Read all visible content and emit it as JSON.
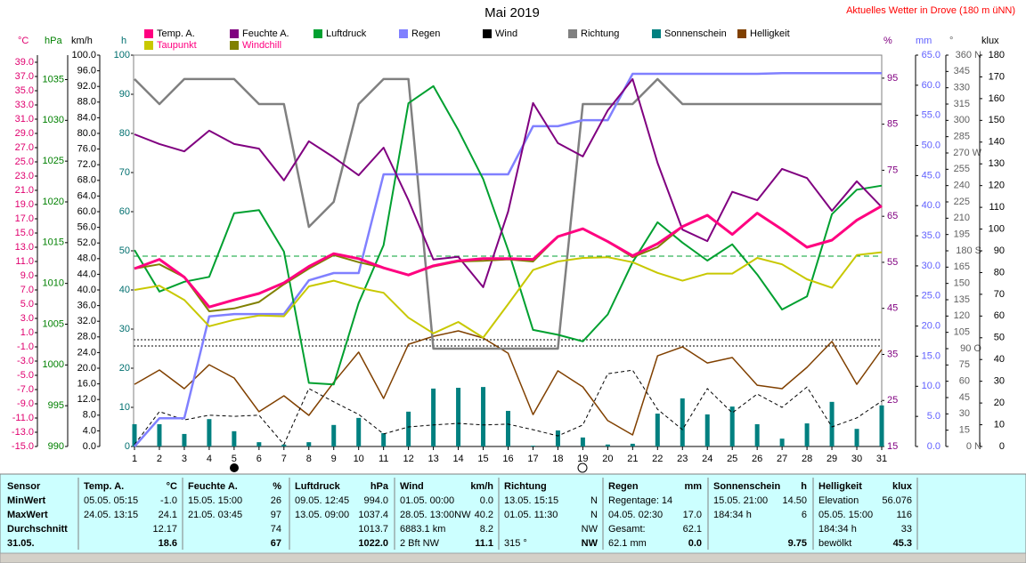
{
  "chart_data": {
    "type": "line",
    "title": "Mai 2019",
    "annotation": "Aktuelles Wetter in Drove (180 m üNN)",
    "categories": [
      "1",
      "2",
      "3",
      "4",
      "5",
      "6",
      "7",
      "8",
      "9",
      "10",
      "11",
      "12",
      "13",
      "14",
      "15",
      "16",
      "17",
      "18",
      "19",
      "20",
      "21",
      "22",
      "23",
      "24",
      "25",
      "26",
      "27",
      "28",
      "29",
      "30",
      "31"
    ],
    "axes": [
      {
        "label": "°C",
        "side": "left",
        "color": "#e0006f",
        "ylim": [
          -15,
          40
        ],
        "yticks": [
          {
            "value": -15,
            "label": "-15.0"
          },
          {
            "value": -13,
            "label": "-13.0"
          },
          {
            "value": -11,
            "label": "-11.0"
          },
          {
            "value": -9,
            "label": "-9.0"
          },
          {
            "value": -7,
            "label": "-7.0"
          },
          {
            "value": -5,
            "label": "-5.0"
          },
          {
            "value": -3,
            "label": "-3.0"
          },
          {
            "value": -1,
            "label": "-1.0"
          },
          {
            "value": 1,
            "label": "1.0"
          },
          {
            "value": 3,
            "label": "3.0"
          },
          {
            "value": 5,
            "label": "5.0"
          },
          {
            "value": 7,
            "label": "7.0"
          },
          {
            "value": 9,
            "label": "9.0"
          },
          {
            "value": 11,
            "label": "11.0"
          },
          {
            "value": 13,
            "label": "13.0"
          },
          {
            "value": 15,
            "label": "15.0"
          },
          {
            "value": 17,
            "label": "17.0"
          },
          {
            "value": 19,
            "label": "19.0"
          },
          {
            "value": 21,
            "label": "21.0"
          },
          {
            "value": 23,
            "label": "23.0"
          },
          {
            "value": 25,
            "label": "25.0"
          },
          {
            "value": 27,
            "label": "27.0"
          },
          {
            "value": 29,
            "label": "29.0"
          },
          {
            "value": 31,
            "label": "31.0"
          },
          {
            "value": 33,
            "label": "33.0"
          },
          {
            "value": 35,
            "label": "35.0"
          },
          {
            "value": 37,
            "label": "37.0"
          },
          {
            "value": 39,
            "label": "39.0"
          }
        ]
      },
      {
        "label": "hPa",
        "side": "left",
        "color": "#008000",
        "ylim": [
          990,
          1038
        ],
        "yticks": [
          990,
          995,
          1000,
          1005,
          1010,
          1015,
          1020,
          1025,
          1030,
          1035
        ]
      },
      {
        "label": "km/h",
        "side": "left",
        "color": "#000000",
        "ylim": [
          0,
          100
        ],
        "yticks": [
          {
            "value": 0,
            "label": "0.0"
          },
          {
            "value": 4,
            "label": "4.0"
          },
          {
            "value": 8,
            "label": "8.0"
          },
          {
            "value": 12,
            "label": "12.0"
          },
          {
            "value": 16,
            "label": "16.0"
          },
          {
            "value": 20,
            "label": "20.0"
          },
          {
            "value": 24,
            "label": "24.0"
          },
          {
            "value": 28,
            "label": "28.0"
          },
          {
            "value": 32,
            "label": "32.0"
          },
          {
            "value": 36,
            "label": "36.0"
          },
          {
            "value": 40,
            "label": "40.0"
          },
          {
            "value": 44,
            "label": "44.0"
          },
          {
            "value": 48,
            "label": "48.0"
          },
          {
            "value": 52,
            "label": "52.0"
          },
          {
            "value": 56,
            "label": "56.0"
          },
          {
            "value": 60,
            "label": "60.0"
          },
          {
            "value": 64,
            "label": "64.0"
          },
          {
            "value": 68,
            "label": "68.0"
          },
          {
            "value": 72,
            "label": "72.0"
          },
          {
            "value": 76,
            "label": "76.0"
          },
          {
            "value": 80,
            "label": "80.0"
          },
          {
            "value": 84,
            "label": "84.0"
          },
          {
            "value": 88,
            "label": "88.0"
          },
          {
            "value": 92,
            "label": "92.0"
          },
          {
            "value": 96,
            "label": "96.0"
          },
          {
            "value": 100,
            "label": "100.0"
          }
        ]
      },
      {
        "label": "h",
        "side": "left",
        "color": "#006f6f",
        "ylim": [
          0,
          100
        ],
        "yticks": [
          0,
          10,
          20,
          30,
          40,
          50,
          60,
          70,
          80,
          90,
          100
        ]
      },
      {
        "label": "%",
        "side": "right",
        "color": "#800080",
        "ylim": [
          15,
          100
        ],
        "yticks": [
          15,
          25,
          35,
          45,
          55,
          65,
          75,
          85,
          95
        ]
      },
      {
        "label": "mm",
        "side": "right",
        "color": "#6060ff",
        "ylim": [
          0,
          65
        ],
        "yticks": [
          {
            "value": 0,
            "label": "0.0"
          },
          {
            "value": 5,
            "label": "5.0"
          },
          {
            "value": 10,
            "label": "10.0"
          },
          {
            "value": 15,
            "label": "15.0"
          },
          {
            "value": 20,
            "label": "20.0"
          },
          {
            "value": 25,
            "label": "25.0"
          },
          {
            "value": 30,
            "label": "30.0"
          },
          {
            "value": 35,
            "label": "35.0"
          },
          {
            "value": 40,
            "label": "40.0"
          },
          {
            "value": 45,
            "label": "45.0"
          },
          {
            "value": 50,
            "label": "50.0"
          },
          {
            "value": 55,
            "label": "55.0"
          },
          {
            "value": 60,
            "label": "60.0"
          },
          {
            "value": 65,
            "label": "65.0"
          }
        ]
      },
      {
        "label": "°",
        "side": "right",
        "color": "#606060",
        "ylim": [
          0,
          360
        ],
        "yticks": [
          {
            "value": 0,
            "label": "0 N"
          },
          15,
          30,
          45,
          60,
          75,
          {
            "value": 90,
            "label": "90 O"
          },
          105,
          120,
          135,
          150,
          165,
          {
            "value": 180,
            "label": "180 S"
          },
          195,
          210,
          225,
          240,
          255,
          {
            "value": 270,
            "label": "270 W"
          },
          285,
          300,
          315,
          330,
          345,
          {
            "value": 360,
            "label": "360 N"
          }
        ]
      },
      {
        "label": "klux",
        "side": "right",
        "color": "#000000",
        "ylim": [
          0,
          180
        ],
        "yticks": [
          0,
          10,
          20,
          30,
          40,
          50,
          60,
          70,
          80,
          90,
          100,
          110,
          120,
          130,
          140,
          150,
          160,
          170,
          180
        ]
      }
    ],
    "series": [
      {
        "name": "Temp. A.",
        "color": "#ff0080",
        "axis": "°C",
        "kind": "line",
        "values": [
          10.0,
          11.3,
          8.8,
          4.6,
          5.6,
          6.5,
          8.0,
          10.3,
          12.1,
          11.4,
          10.1,
          9.1,
          10.4,
          11.1,
          11.4,
          11.4,
          11.3,
          14.5,
          15.6,
          13.8,
          11.8,
          13.5,
          15.9,
          17.5,
          14.8,
          17.8,
          15.5,
          13.0,
          14.0,
          16.8,
          18.8
        ]
      },
      {
        "name": "Taupunkt",
        "color": "#c8c800",
        "axis": "°C",
        "kind": "line",
        "values": [
          7.0,
          7.6,
          5.6,
          1.9,
          2.8,
          3.4,
          3.3,
          7.5,
          8.3,
          7.3,
          6.6,
          3.1,
          0.9,
          2.5,
          0.3,
          5.0,
          9.8,
          11.0,
          11.5,
          11.6,
          10.9,
          9.4,
          8.3,
          9.3,
          9.3,
          11.5,
          10.6,
          8.5,
          7.3,
          11.9,
          12.3
        ]
      },
      {
        "name": "Feuchte A.",
        "color": "#800080",
        "axis": "%",
        "kind": "line",
        "values": [
          82.8,
          80.7,
          79.1,
          83.6,
          80.7,
          79.7,
          72.8,
          81.3,
          77.8,
          73.9,
          79.9,
          68.5,
          55.6,
          56.2,
          49.6,
          66.0,
          89.6,
          80.9,
          78.0,
          88.0,
          94.8,
          76.6,
          62.1,
          59.6,
          70.3,
          68.5,
          75.3,
          73.3,
          66.2,
          72.6,
          67.0
        ]
      },
      {
        "name": "Windchill",
        "color": "#808000",
        "axis": "°C",
        "kind": "line",
        "values": [
          10.0,
          10.6,
          8.8,
          4.0,
          4.4,
          5.3,
          7.8,
          10.0,
          11.9,
          10.9,
          10.1,
          9.1,
          10.3,
          11.0,
          11.1,
          11.3,
          11.0,
          14.5,
          15.6,
          13.8,
          11.6,
          13.0,
          15.9,
          17.5,
          14.8,
          17.8,
          15.5,
          13.0,
          14.0,
          16.8,
          18.8
        ]
      },
      {
        "name": "Luftdruck",
        "color": "#00a030",
        "axis": "hPa",
        "kind": "line",
        "values": [
          1014.1,
          1009.0,
          1010.2,
          1010.8,
          1018.6,
          1019.0,
          1013.9,
          997.8,
          997.6,
          1007.6,
          1014.7,
          1032.1,
          1034.2,
          1028.8,
          1022.8,
          1014.1,
          1004.3,
          1003.7,
          1002.9,
          1006.2,
          1012.6,
          1017.5,
          1015.0,
          1012.8,
          1014.8,
          1011.1,
          1006.8,
          1008.4,
          1018.5,
          1021.5,
          1022.0
        ]
      },
      {
        "name": "Regen",
        "color": "#8080ff",
        "axis": "mm",
        "kind": "line",
        "values": [
          0.0,
          4.7,
          4.7,
          21.6,
          22.0,
          22.0,
          22.0,
          27.6,
          28.8,
          28.8,
          45.2,
          45.2,
          45.2,
          45.2,
          45.2,
          45.2,
          53.2,
          53.2,
          54.2,
          54.2,
          61.9,
          61.9,
          61.9,
          61.9,
          61.9,
          61.9,
          62.0,
          62.0,
          62.0,
          62.0,
          62.0
        ]
      },
      {
        "name": "Wind",
        "color": "#000000",
        "axis": "km/h",
        "kind": "line",
        "dashed": true,
        "values": [
          0.5,
          8.9,
          6.8,
          8.0,
          7.7,
          8.0,
          0.5,
          14.8,
          11.4,
          8.2,
          3.2,
          5.0,
          5.5,
          5.9,
          5.5,
          5.7,
          4.3,
          2.7,
          5.5,
          18.6,
          19.5,
          9.5,
          4.3,
          14.8,
          8.6,
          13.4,
          10.0,
          15.2,
          5.0,
          7.3,
          11.6
        ]
      },
      {
        "name": "Richtung",
        "color": "#808080",
        "axis": "°",
        "kind": "line",
        "values": [
          338,
          315,
          338,
          338,
          338,
          315,
          315,
          202,
          225,
          315,
          338,
          338,
          90,
          90,
          90,
          90,
          90,
          90,
          315,
          315,
          315,
          338,
          315,
          315,
          315,
          315,
          315,
          315,
          315,
          315,
          315
        ]
      },
      {
        "name": "Sonnenschein",
        "color": "#008080",
        "axis": "h",
        "kind": "bar",
        "values": [
          5.7,
          5.7,
          3.2,
          7.0,
          3.9,
          1.1,
          0.5,
          1.1,
          5.5,
          7.3,
          3.4,
          8.9,
          14.8,
          15.0,
          15.2,
          9.1,
          0.2,
          4.1,
          2.3,
          0.5,
          0.7,
          8.4,
          12.3,
          8.2,
          10.2,
          5.7,
          2.0,
          5.9,
          11.4,
          4.5,
          10.5
        ]
      },
      {
        "name": "Helligkeit",
        "color": "#804000",
        "axis": "klux",
        "kind": "line",
        "values": [
          28.6,
          35.2,
          26.6,
          37.6,
          31.5,
          16.0,
          23.3,
          14.3,
          29.5,
          43.4,
          22.1,
          47.0,
          50.7,
          53.2,
          49.9,
          42.9,
          14.7,
          34.8,
          27.4,
          11.9,
          5.3,
          41.7,
          45.8,
          38.4,
          40.9,
          28.2,
          26.6,
          36.4,
          48.3,
          28.6,
          44.6
        ]
      }
    ]
  },
  "stats": {
    "labels": [
      "Sensor",
      "MinWert",
      "MaxWert",
      "Durchschnitt",
      "31.05."
    ],
    "panels": [
      {
        "title": "Temp. A.",
        "unit": "°C",
        "rows": [
          {
            "left": "05.05.  05:15",
            "right": "-1.0"
          },
          {
            "left": "24.05.  13:15",
            "right": "24.1"
          },
          {
            "right": "12.17"
          },
          {
            "right": "18.6"
          }
        ]
      },
      {
        "title": "Feuchte A.",
        "unit": "%",
        "rows": [
          {
            "left": "15.05.  15:00",
            "right": "26"
          },
          {
            "left": "21.05.  03:45",
            "right": "97"
          },
          {
            "right": "74"
          },
          {
            "right": "67"
          }
        ]
      },
      {
        "title": "Luftdruck",
        "unit": "hPa",
        "rows": [
          {
            "left": "09.05.  12:45",
            "right": "994.0"
          },
          {
            "left": "13.05.  09:00",
            "right": "1037.4"
          },
          {
            "right": "1013.7"
          },
          {
            "right": "1022.0"
          }
        ]
      },
      {
        "title": "Wind",
        "unit": "km/h",
        "rows": [
          {
            "left": "01.05.  00:00",
            "right": "0.0"
          },
          {
            "left": "28.05.  13:00NW",
            "right": "40.2"
          },
          {
            "left": "6883.1 km",
            "right": "8.2"
          },
          {
            "left": "2 Bft NW",
            "right": "11.1"
          }
        ]
      },
      {
        "title": "Richtung",
        "rows": [
          {
            "left": "13.05.  15:15",
            "right": "N"
          },
          {
            "left": "01.05.  11:30",
            "right": "N"
          },
          {
            "right": "NW"
          },
          {
            "left": "315 °",
            "right": "NW"
          }
        ]
      },
      {
        "title": "Regen",
        "unit": "mm",
        "rows": [
          {
            "left": "Regentage: 14"
          },
          {
            "left": "04.05.  02:30",
            "right": "17.0"
          },
          {
            "left": "Gesamt:",
            "right": "62.1"
          },
          {
            "left": "62.1 mm",
            "right": "0.0"
          }
        ]
      },
      {
        "title": "Sonnenschein",
        "unit": "h",
        "rows": [
          {
            "left": "15.05.  21:00",
            "right": "14.50"
          },
          {
            "left": "184:34 h",
            "right": "6"
          },
          {},
          {
            "right": "9.75"
          }
        ]
      },
      {
        "title": "Helligkeit",
        "unit": "klux",
        "rows": [
          {
            "left": "Elevation",
            "right": "56.076"
          },
          {
            "left": "05.05.  15:00",
            "right": "116"
          },
          {
            "left": "184:34 h",
            "right": "33"
          },
          {
            "left": "bewölkt",
            "right": "45.3"
          }
        ]
      }
    ]
  }
}
